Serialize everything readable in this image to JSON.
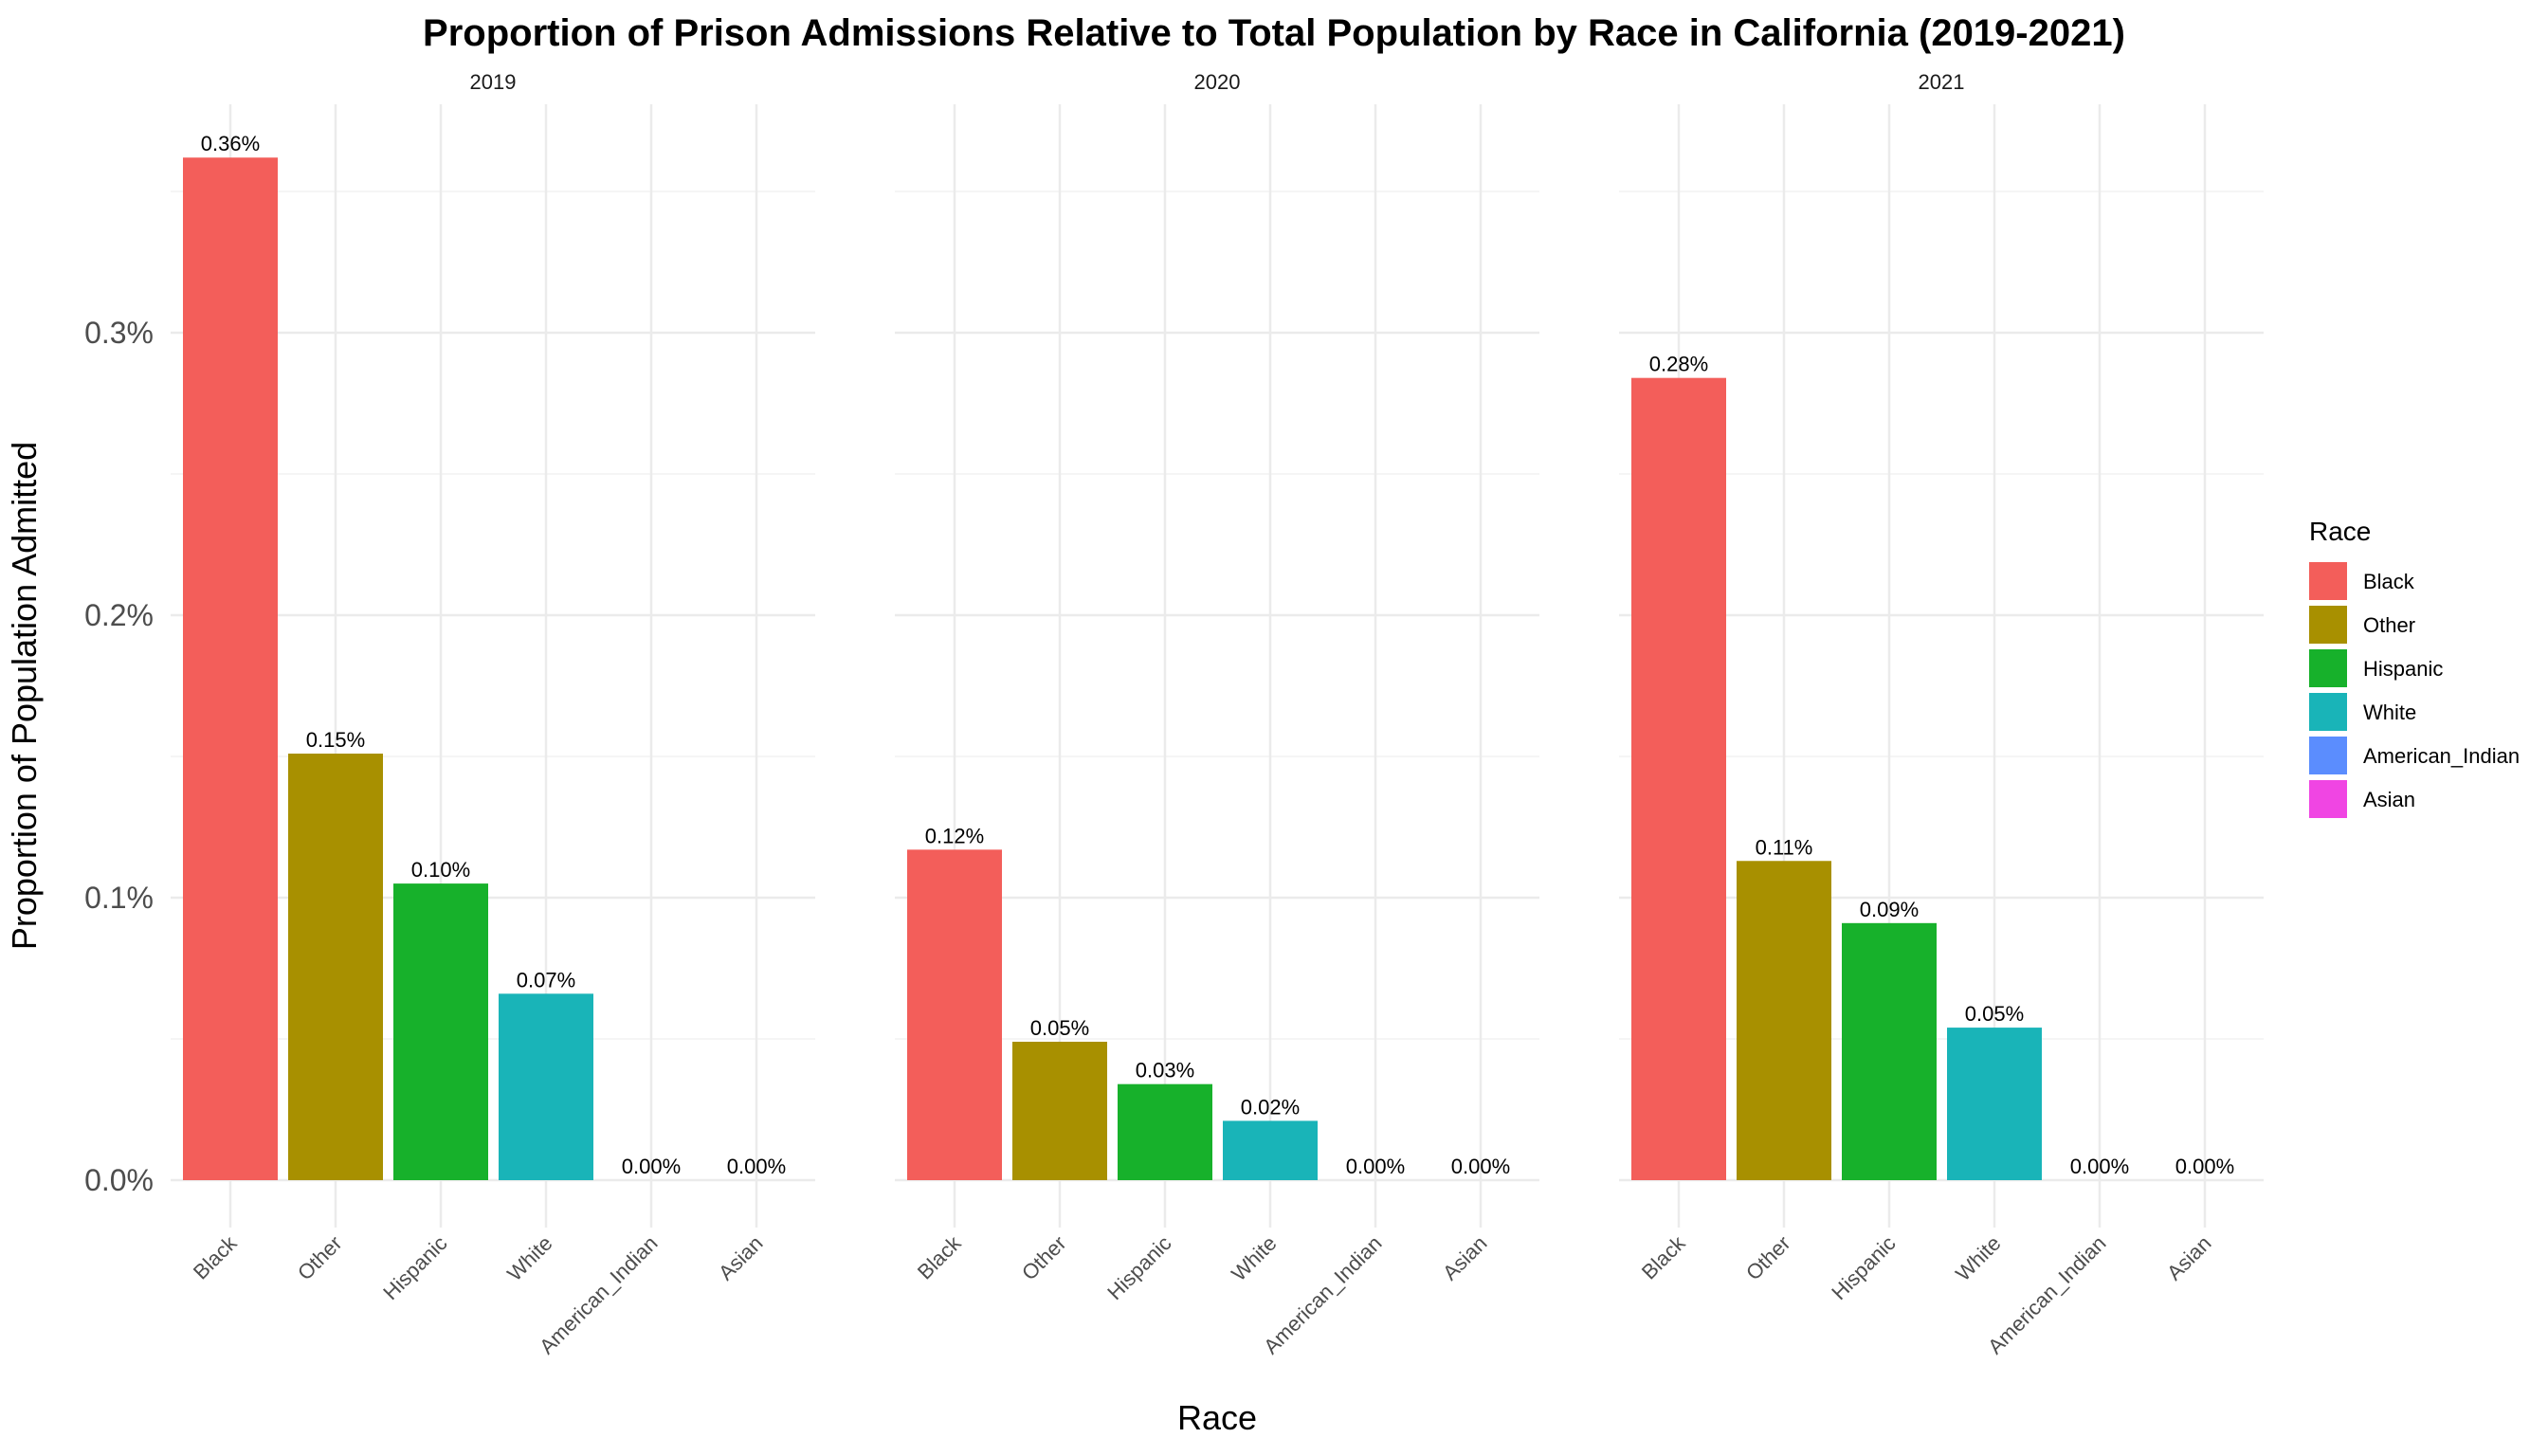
{
  "chart_data": {
    "type": "bar",
    "title": "Proportion of Prison Admissions Relative to Total Population by Race in California (2019-2021)",
    "xlabel": "Race",
    "ylabel": "Proportion of Population Admitted",
    "ylim": [
      0,
      0.38
    ],
    "y_ticks": [
      0.0,
      0.1,
      0.2,
      0.3
    ],
    "y_tick_labels": [
      "0.0%",
      "0.1%",
      "0.2%",
      "0.3%"
    ],
    "grid": true,
    "legend": {
      "title": "Race",
      "position": "right"
    },
    "categories": [
      "Black",
      "Other",
      "Hispanic",
      "White",
      "American_Indian",
      "Asian"
    ],
    "colors": {
      "Black": "#F35E5A",
      "Other": "#A89000",
      "Hispanic": "#17B12B",
      "White": "#19B4B8",
      "American_Indian": "#5B8DFE",
      "Asian": "#F045E3"
    },
    "panels": [
      {
        "facet": "2019",
        "values": [
          0.362,
          0.151,
          0.105,
          0.066,
          0.0,
          0.0
        ],
        "labels": [
          "0.36%",
          "0.15%",
          "0.10%",
          "0.07%",
          "0.00%",
          "0.00%"
        ]
      },
      {
        "facet": "2020",
        "values": [
          0.117,
          0.049,
          0.034,
          0.021,
          0.0,
          0.0
        ],
        "labels": [
          "0.12%",
          "0.05%",
          "0.03%",
          "0.02%",
          "0.00%",
          "0.00%"
        ]
      },
      {
        "facet": "2021",
        "values": [
          0.284,
          0.113,
          0.091,
          0.054,
          0.0,
          0.0
        ],
        "labels": [
          "0.28%",
          "0.11%",
          "0.09%",
          "0.05%",
          "0.00%",
          "0.00%"
        ]
      }
    ]
  }
}
